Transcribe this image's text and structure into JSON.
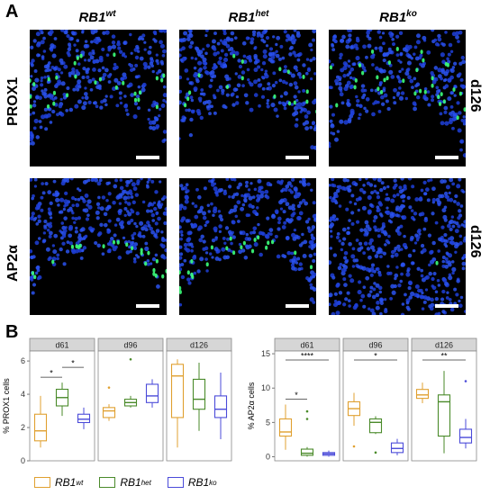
{
  "figure": {
    "panel_a_letter": "A",
    "panel_b_letter": "B",
    "columns": [
      {
        "base": "RB1",
        "sup": "wt"
      },
      {
        "base": "RB1",
        "sup": "het"
      },
      {
        "base": "RB1",
        "sup": "ko"
      }
    ],
    "rows": [
      {
        "marker": "PROX1",
        "day": "d126"
      },
      {
        "marker": "AP2α",
        "day": "d126"
      }
    ],
    "legend": [
      {
        "base": "RB1",
        "sup": "wt",
        "color": "#E0A030"
      },
      {
        "base": "RB1",
        "sup": "het",
        "color": "#4A8A2A"
      },
      {
        "base": "RB1",
        "sup": "ko",
        "color": "#4B4BD9"
      }
    ]
  },
  "chart_data": [
    {
      "type": "box",
      "ylabel": "% PROX1 cells",
      "ylim": [
        0,
        6.6
      ],
      "yticks": [
        0,
        2,
        4,
        6
      ],
      "facets": [
        {
          "label": "d61",
          "boxes": [
            {
              "group": "RB1wt",
              "q1": 1.2,
              "median": 1.8,
              "q3": 2.8,
              "whisker_low": 0.8,
              "whisker_high": 3.9,
              "outliers": []
            },
            {
              "group": "RB1het",
              "q1": 3.3,
              "median": 3.8,
              "q3": 4.3,
              "whisker_low": 2.7,
              "whisker_high": 4.7,
              "outliers": []
            },
            {
              "group": "RB1ko",
              "q1": 2.3,
              "median": 2.5,
              "q3": 2.8,
              "whisker_low": 1.9,
              "whisker_high": 3.2,
              "outliers": []
            }
          ],
          "sig": [
            {
              "from": 0,
              "to": 1,
              "label": "*"
            },
            {
              "from": 1,
              "to": 2,
              "label": "*"
            }
          ]
        },
        {
          "label": "d96",
          "boxes": [
            {
              "group": "RB1wt",
              "q1": 2.6,
              "median": 3.0,
              "q3": 3.2,
              "whisker_low": 2.4,
              "whisker_high": 3.4,
              "outliers": [
                4.4
              ]
            },
            {
              "group": "RB1het",
              "q1": 3.3,
              "median": 3.5,
              "q3": 3.7,
              "whisker_low": 3.2,
              "whisker_high": 3.9,
              "outliers": [
                6.1
              ]
            },
            {
              "group": "RB1ko",
              "q1": 3.5,
              "median": 3.9,
              "q3": 4.6,
              "whisker_low": 3.2,
              "whisker_high": 4.9,
              "outliers": []
            }
          ],
          "sig": []
        },
        {
          "label": "d126",
          "boxes": [
            {
              "group": "RB1wt",
              "q1": 2.6,
              "median": 5.1,
              "q3": 5.8,
              "whisker_low": 0.8,
              "whisker_high": 6.1,
              "outliers": []
            },
            {
              "group": "RB1het",
              "q1": 3.1,
              "median": 3.7,
              "q3": 4.9,
              "whisker_low": 1.8,
              "whisker_high": 5.9,
              "outliers": []
            },
            {
              "group": "RB1ko",
              "q1": 2.6,
              "median": 3.1,
              "q3": 3.9,
              "whisker_low": 1.3,
              "whisker_high": 5.3,
              "outliers": []
            }
          ],
          "sig": []
        }
      ]
    },
    {
      "type": "box",
      "ylabel": "% AP2α cells",
      "ylim": [
        -0.6,
        15.4
      ],
      "yticks": [
        0,
        5,
        10,
        15
      ],
      "facets": [
        {
          "label": "d61",
          "boxes": [
            {
              "group": "RB1wt",
              "q1": 3.0,
              "median": 3.6,
              "q3": 5.5,
              "whisker_low": 1.0,
              "whisker_high": 7.6,
              "outliers": []
            },
            {
              "group": "RB1het",
              "q1": 0.2,
              "median": 0.5,
              "q3": 1.1,
              "whisker_low": 0.0,
              "whisker_high": 1.4,
              "outliers": [
                5.5,
                6.6
              ]
            },
            {
              "group": "RB1ko",
              "q1": 0.2,
              "median": 0.4,
              "q3": 0.6,
              "whisker_low": 0.0,
              "whisker_high": 0.9,
              "outliers": []
            }
          ],
          "sig": [
            {
              "from": 0,
              "to": 1,
              "label": "*"
            },
            {
              "from": 0,
              "to": 2,
              "label": "****"
            }
          ]
        },
        {
          "label": "d96",
          "boxes": [
            {
              "group": "RB1wt",
              "q1": 6.0,
              "median": 7.0,
              "q3": 8.0,
              "whisker_low": 4.5,
              "whisker_high": 9.3,
              "outliers": [
                1.5
              ]
            },
            {
              "group": "RB1het",
              "q1": 3.5,
              "median": 5.0,
              "q3": 5.5,
              "whisker_low": 3.3,
              "whisker_high": 5.9,
              "outliers": [
                0.6
              ]
            },
            {
              "group": "RB1ko",
              "q1": 0.6,
              "median": 1.2,
              "q3": 2.0,
              "whisker_low": 0.2,
              "whisker_high": 2.6,
              "outliers": []
            }
          ],
          "sig": [
            {
              "from": 0,
              "to": 2,
              "label": "*"
            }
          ]
        },
        {
          "label": "d126",
          "boxes": [
            {
              "group": "RB1wt",
              "q1": 8.5,
              "median": 9.0,
              "q3": 9.8,
              "whisker_low": 7.8,
              "whisker_high": 10.8,
              "outliers": []
            },
            {
              "group": "RB1het",
              "q1": 3.0,
              "median": 8.0,
              "q3": 9.0,
              "whisker_low": 0.5,
              "whisker_high": 12.5,
              "outliers": []
            },
            {
              "group": "RB1ko",
              "q1": 2.0,
              "median": 2.8,
              "q3": 4.0,
              "whisker_low": 1.2,
              "whisker_high": 5.5,
              "outliers": [
                11.0
              ]
            }
          ],
          "sig": [
            {
              "from": 0,
              "to": 2,
              "label": "**"
            }
          ]
        }
      ]
    }
  ]
}
